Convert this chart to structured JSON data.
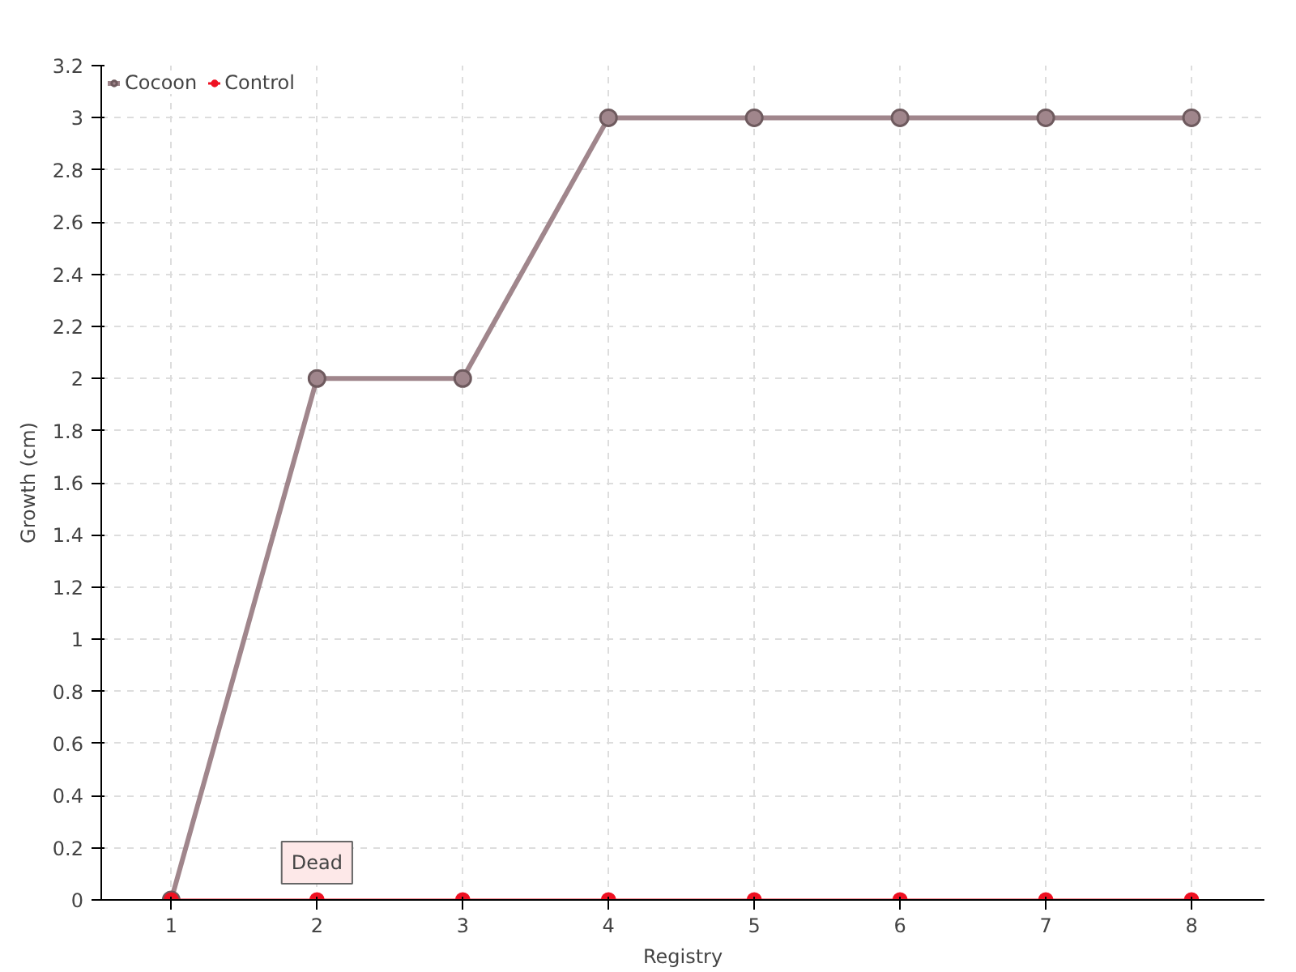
{
  "chart_data": {
    "type": "line",
    "xlabel": "Registry",
    "ylabel": "Growth (cm)",
    "categories": [
      "1",
      "2",
      "3",
      "4",
      "5",
      "6",
      "7",
      "8"
    ],
    "series": [
      {
        "name": "Cocoon",
        "color": "#a0868c",
        "values": [
          0,
          2,
          2,
          3,
          3,
          3,
          3,
          3
        ]
      },
      {
        "name": "Control",
        "color": "#ee1122",
        "values": [
          0,
          0,
          0,
          0,
          0,
          0,
          0,
          0
        ]
      }
    ],
    "ylim": [
      0,
      3.2
    ],
    "yticks": [
      0,
      0.2,
      0.4,
      0.6,
      0.8,
      1,
      1.2,
      1.4,
      1.6,
      1.8,
      2,
      2.2,
      2.4,
      2.6,
      2.8,
      3,
      3.2
    ],
    "annotations": [
      {
        "text": "Dead",
        "x": "2",
        "y": 0
      }
    ],
    "grid": true,
    "legend": "top left",
    "marker": "circle",
    "line_style": "solid"
  }
}
